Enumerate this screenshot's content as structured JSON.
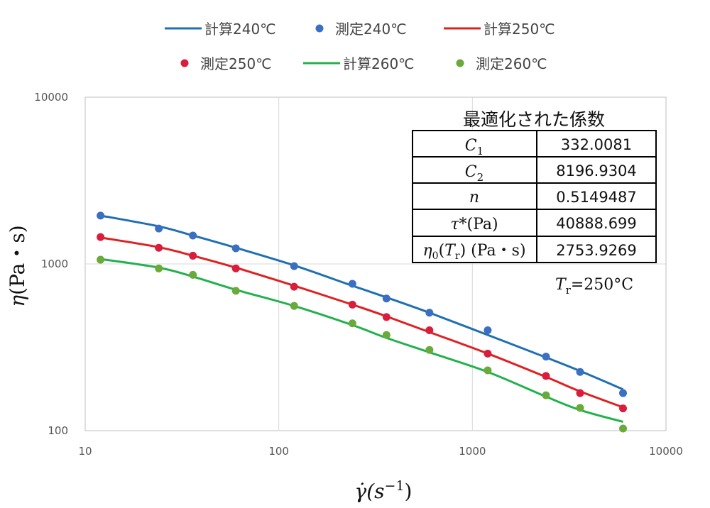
{
  "chart_data": {
    "type": "line",
    "x_scale": "log",
    "y_scale": "log",
    "xlim": [
      10,
      10000
    ],
    "ylim": [
      100,
      10000
    ],
    "x_ticks": [
      "10",
      "100",
      "1000",
      "10000"
    ],
    "y_ticks": [
      "100",
      "1000",
      "10000"
    ],
    "grid": true,
    "legend_position": "top",
    "xlabel": "γ̇(s⁻¹)",
    "ylabel": "η(Pa・s)",
    "x_points": [
      12,
      24,
      36,
      60,
      120,
      240,
      360,
      600,
      1200,
      2400,
      3600,
      6000
    ],
    "series": [
      {
        "name": "計算240℃",
        "kind": "line",
        "color": "#1f6fb2",
        "values": [
          1950,
          1680,
          1480,
          1250,
          980,
          740,
          630,
          510,
          375,
          275,
          228,
          177
        ]
      },
      {
        "name": "測定240℃",
        "kind": "marker",
        "color": "#3a6fc2",
        "values": [
          1950,
          1630,
          1480,
          1240,
          970,
          760,
          620,
          510,
          400,
          278,
          225,
          168
        ]
      },
      {
        "name": "計算250℃",
        "kind": "line",
        "color": "#e02020",
        "values": [
          1440,
          1260,
          1120,
          950,
          740,
          570,
          485,
          390,
          290,
          210,
          172,
          138
        ]
      },
      {
        "name": "測定250℃",
        "kind": "marker",
        "color": "#d81e3c",
        "values": [
          1450,
          1250,
          1120,
          940,
          730,
          570,
          480,
          400,
          290,
          213,
          168,
          136
        ]
      },
      {
        "name": "計算260℃",
        "kind": "line",
        "color": "#22b14c",
        "values": [
          1070,
          950,
          840,
          700,
          560,
          430,
          360,
          295,
          225,
          160,
          133,
          113
        ]
      },
      {
        "name": "測定260℃",
        "kind": "marker",
        "color": "#6aaa3a",
        "values": [
          1060,
          940,
          860,
          690,
          560,
          440,
          375,
          305,
          230,
          163,
          137,
          103
        ]
      }
    ],
    "annotations": {
      "table_title": "最適化された係数",
      "rows": [
        {
          "param": "C1",
          "value": "332.0081"
        },
        {
          "param": "C2",
          "value": "8196.9304"
        },
        {
          "param": "n",
          "value": "0.5149487"
        },
        {
          "param": "τ*(Pa)",
          "value": "40888.699"
        },
        {
          "param": "η0(Tr) (Pa・s)",
          "value": "2753.9269"
        }
      ],
      "reference_temperature": "Tr=250°C"
    }
  }
}
